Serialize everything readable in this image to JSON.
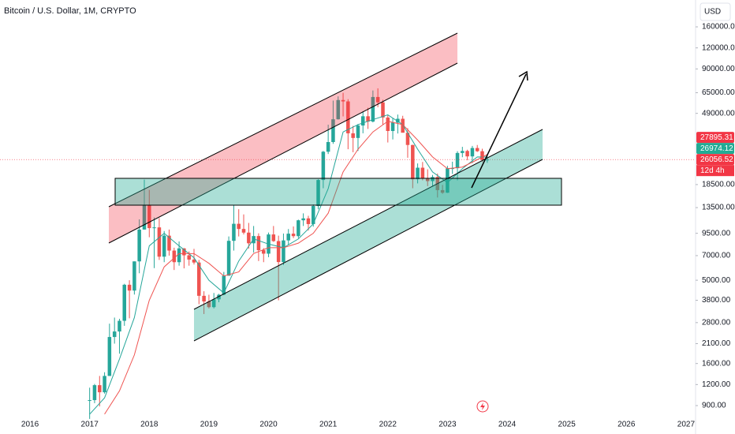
{
  "chart_data": {
    "type": "candlestick",
    "title": "Bitcoin / U.S. Dollar, 1M, CRYPTO",
    "currency": "USD",
    "countdown": "12d 4h",
    "log_scale": true,
    "grid": false,
    "up_color": "#26a69a",
    "down_color": "#ef5350",
    "xlim": [
      2015.497,
      2027.16
    ],
    "xticks": [
      2016,
      2017,
      2018,
      2019,
      2020,
      2021,
      2022,
      2023,
      2024,
      2025,
      2026,
      2027
    ],
    "ylim": [
      644,
      231000
    ],
    "yticks": [
      {
        "value": 160000,
        "label": "160000.00"
      },
      {
        "value": 120000,
        "label": "120000.00"
      },
      {
        "value": 90000,
        "label": "90000.00"
      },
      {
        "value": 65000,
        "label": "65000.00"
      },
      {
        "value": 49000,
        "label": "49000.00"
      },
      {
        "value": 18500,
        "label": "18500.00"
      },
      {
        "value": 13500,
        "label": "13500.00"
      },
      {
        "value": 9500,
        "label": "9500.00"
      },
      {
        "value": 7000,
        "label": "7000.00"
      },
      {
        "value": 5000,
        "label": "5000.00"
      },
      {
        "value": 3800,
        "label": "3800.00"
      },
      {
        "value": 2800,
        "label": "2800.00"
      },
      {
        "value": 2100,
        "label": "2100.00"
      },
      {
        "value": 1600,
        "label": "1600.00"
      },
      {
        "value": 1200,
        "label": "1200.00"
      },
      {
        "value": 900,
        "label": "900.00"
      }
    ],
    "x": [
      2017,
      2017.083,
      2017.167,
      2017.25,
      2017.333,
      2017.417,
      2017.5,
      2017.583,
      2017.667,
      2017.75,
      2017.833,
      2017.917,
      2018,
      2018.083,
      2018.167,
      2018.25,
      2018.333,
      2018.417,
      2018.5,
      2018.583,
      2018.667,
      2018.75,
      2018.833,
      2018.917,
      2019,
      2019.083,
      2019.167,
      2019.25,
      2019.333,
      2019.417,
      2019.5,
      2019.583,
      2019.667,
      2019.75,
      2019.833,
      2019.917,
      2020,
      2020.083,
      2020.167,
      2020.25,
      2020.333,
      2020.417,
      2020.5,
      2020.583,
      2020.667,
      2020.75,
      2020.833,
      2020.917,
      2021,
      2021.083,
      2021.167,
      2021.25,
      2021.333,
      2021.417,
      2021.5,
      2021.583,
      2021.667,
      2021.75,
      2021.833,
      2021.917,
      2022,
      2022.083,
      2022.167,
      2022.25,
      2022.333,
      2022.417,
      2022.5,
      2022.583,
      2022.667,
      2022.75,
      2022.833,
      2022.917,
      2023,
      2023.083,
      2023.167,
      2023.25,
      2023.333,
      2023.417,
      2023.5,
      2023.583,
      2023.667
    ],
    "open": [
      964,
      970,
      1190,
      1080,
      1350,
      2300,
      2480,
      2870,
      4700,
      4340,
      6470,
      10000,
      13900,
      10200,
      10300,
      6900,
      9200,
      7500,
      6400,
      7730,
      7030,
      6630,
      6370,
      4040,
      3740,
      3460,
      3850,
      4100,
      5320,
      8570,
      10820,
      10080,
      9590,
      8290,
      9150,
      7540,
      7190,
      9350,
      8540,
      6410,
      8620,
      9450,
      9140,
      11350,
      11650,
      10780,
      13800,
      19700,
      28990,
      33100,
      45200,
      58800,
      57700,
      37300,
      35000,
      41500,
      47100,
      43800,
      61300,
      57000,
      46300,
      38500,
      43200,
      45500,
      37600,
      31800,
      19900,
      23300,
      20050,
      19400,
      20500,
      17150,
      16550,
      23100,
      23150,
      28500,
      29300,
      27200,
      30500,
      29200,
      25900
    ],
    "high": [
      1150,
      1210,
      1350,
      1420,
      2760,
      3000,
      2950,
      4760,
      5000,
      6470,
      11500,
      19800,
      17200,
      11800,
      11700,
      9800,
      10000,
      7800,
      8500,
      7760,
      7410,
      7680,
      6600,
      4300,
      4100,
      4200,
      4150,
      5600,
      9100,
      13900,
      13200,
      12300,
      10950,
      10500,
      9500,
      7750,
      9600,
      10500,
      9200,
      9470,
      10070,
      10430,
      11450,
      12480,
      12070,
      14100,
      19900,
      29300,
      41950,
      58350,
      61800,
      64900,
      59500,
      41300,
      42400,
      50500,
      52900,
      67000,
      69000,
      59100,
      47900,
      45800,
      48200,
      47400,
      40000,
      31900,
      24700,
      25200,
      22800,
      21100,
      21500,
      18400,
      23900,
      25300,
      29200,
      31000,
      29800,
      31400,
      31800,
      30200,
      27500
    ],
    "low": [
      750,
      930,
      890,
      1060,
      1350,
      2100,
      1830,
      2680,
      2970,
      4110,
      5500,
      10000,
      9000,
      5900,
      6600,
      6400,
      7000,
      5750,
      6100,
      5880,
      6100,
      6200,
      3600,
      3150,
      3400,
      3400,
      3700,
      4070,
      5320,
      7500,
      9100,
      9350,
      7700,
      7300,
      6500,
      6400,
      6850,
      8450,
      3800,
      6150,
      8120,
      8900,
      8900,
      10500,
      9870,
      10400,
      13200,
      17600,
      28100,
      32300,
      45000,
      47000,
      30000,
      28800,
      29300,
      37300,
      39600,
      43300,
      53300,
      42000,
      32900,
      34300,
      37200,
      37700,
      26700,
      17600,
      18800,
      19600,
      18100,
      18200,
      15500,
      16300,
      16500,
      21400,
      19600,
      26900,
      25800,
      24800,
      28900,
      25200,
      24900
    ],
    "close": [
      970,
      1190,
      1080,
      1350,
      2300,
      2480,
      2870,
      4700,
      4340,
      6470,
      10000,
      13900,
      10200,
      10300,
      6900,
      9200,
      7500,
      6400,
      7730,
      7030,
      6630,
      6370,
      4040,
      3740,
      3460,
      3850,
      4100,
      5320,
      8570,
      10820,
      10080,
      9590,
      8290,
      9150,
      7540,
      7190,
      9350,
      8540,
      6410,
      8620,
      9450,
      9140,
      11350,
      11650,
      10780,
      13800,
      19700,
      28990,
      33100,
      45200,
      58800,
      57700,
      37300,
      35000,
      41500,
      47100,
      43800,
      61300,
      57000,
      46300,
      38500,
      43200,
      45500,
      37600,
      31800,
      19900,
      23300,
      20050,
      19400,
      20500,
      17150,
      16550,
      23100,
      23150,
      28500,
      29300,
      27200,
      30500,
      29200,
      25900,
      26056.52
    ],
    "lines": [
      {
        "color": "#26a69a",
        "x": [
          2017,
          2017.25,
          2017.5,
          2017.75,
          2018,
          2018.25,
          2018.5,
          2018.75,
          2019,
          2019.25,
          2019.5,
          2019.75,
          2020,
          2020.25,
          2020.5,
          2020.75,
          2021,
          2021.25,
          2021.5,
          2021.75,
          2022,
          2022.25,
          2022.5,
          2022.75,
          2023,
          2023.25,
          2023.5,
          2023.667
        ],
        "values": [
          800,
          1000,
          1700,
          3000,
          8000,
          9500,
          8000,
          6800,
          5000,
          4200,
          6500,
          8800,
          8200,
          7800,
          8800,
          10800,
          17500,
          38000,
          42000,
          45000,
          48000,
          42000,
          30000,
          22000,
          19000,
          23000,
          27000,
          26974.12
        ]
      },
      {
        "color": "#ef5350",
        "x": [
          2017.25,
          2017.5,
          2017.75,
          2018,
          2018.25,
          2018.5,
          2018.75,
          2019,
          2019.25,
          2019.5,
          2019.75,
          2020,
          2020.25,
          2020.5,
          2020.75,
          2021,
          2021.25,
          2021.5,
          2021.75,
          2022,
          2022.25,
          2022.5,
          2022.75,
          2023,
          2023.25,
          2023.5,
          2023.667
        ],
        "values": [
          800,
          1100,
          1800,
          3800,
          6000,
          7200,
          7200,
          6300,
          5300,
          5600,
          7200,
          7800,
          7800,
          8300,
          9500,
          12500,
          22000,
          30000,
          38000,
          44000,
          42000,
          34000,
          27000,
          23000,
          23500,
          26000,
          27895.31
        ]
      }
    ],
    "price_labels": [
      {
        "value": 27895.31,
        "color": "#f23645"
      },
      {
        "value": 26974.12,
        "color": "#22ab94"
      },
      {
        "value": 26056.52,
        "color": "#f23645"
      }
    ]
  }
}
